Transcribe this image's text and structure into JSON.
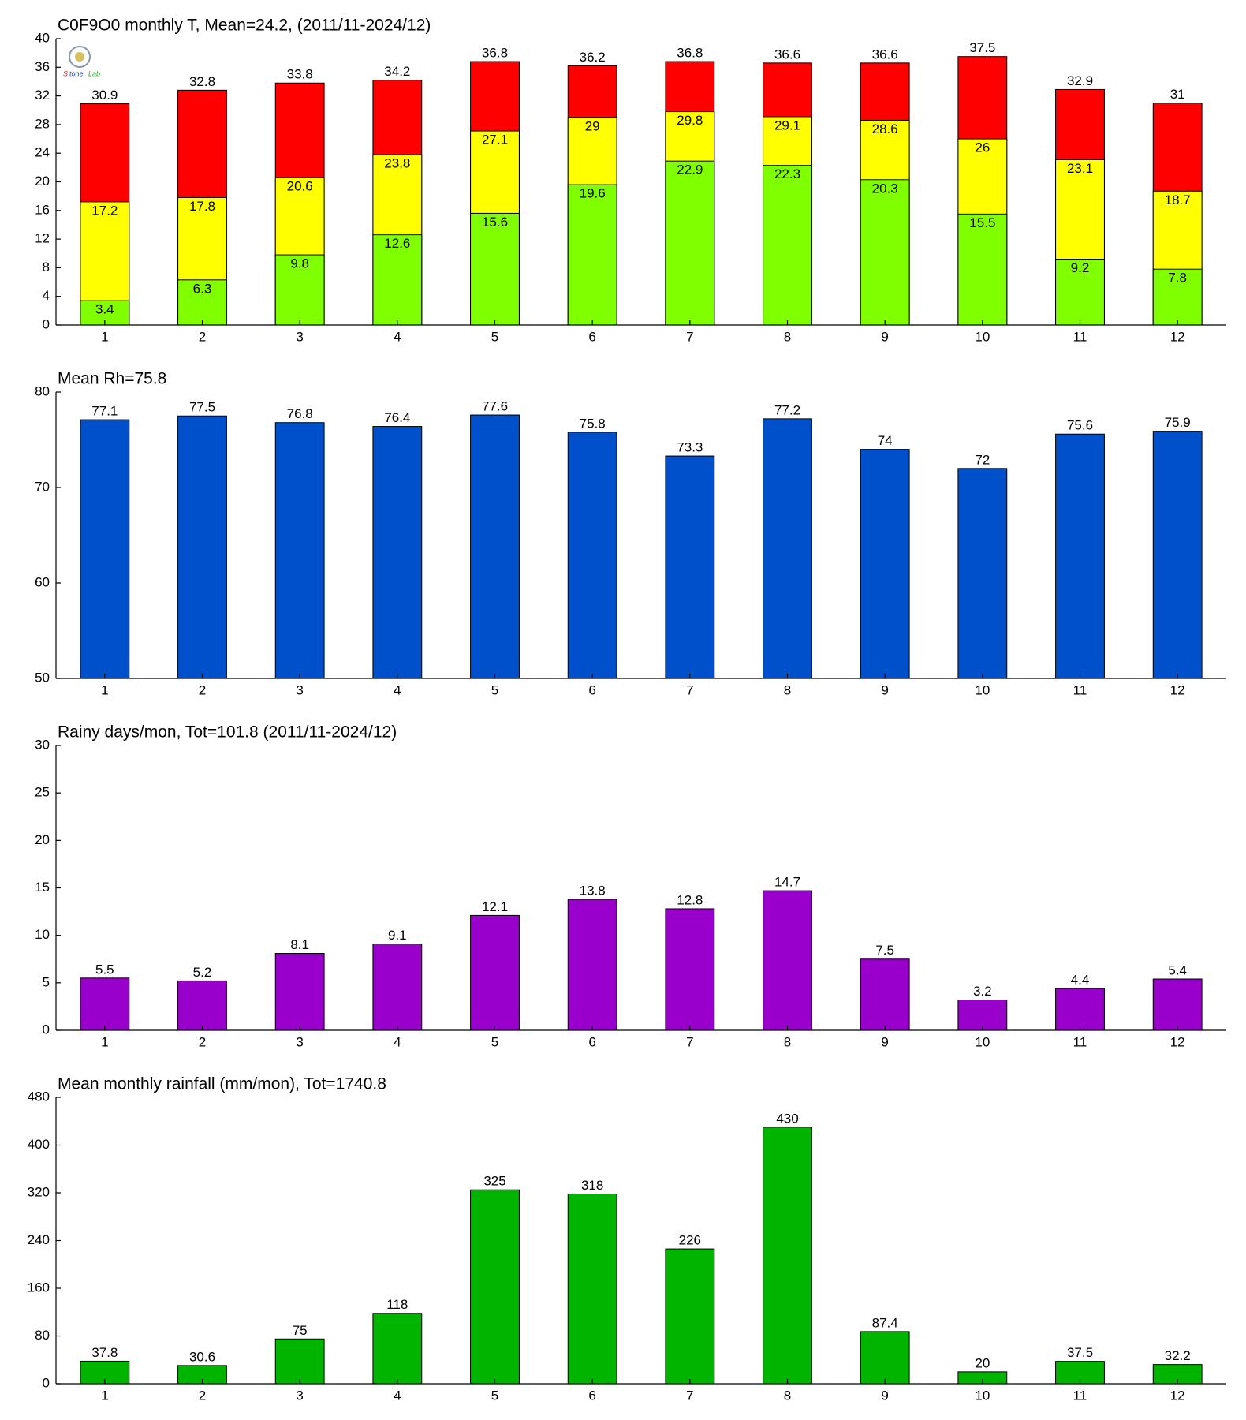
{
  "chart_data": [
    {
      "type": "bar",
      "title": "C0F9O0 monthly T, Mean=24.2, (2011/11-2024/12)",
      "categories": [
        1,
        2,
        3,
        4,
        5,
        6,
        7,
        8,
        9,
        10,
        11,
        12
      ],
      "series": [
        {
          "color": "#ff0000",
          "values": [
            30.9,
            32.8,
            33.8,
            34.2,
            36.8,
            36.2,
            36.8,
            36.6,
            36.6,
            37.5,
            32.9,
            31
          ]
        },
        {
          "color": "#ffff00",
          "values": [
            17.2,
            17.8,
            20.6,
            23.8,
            27.1,
            29,
            29.8,
            29.1,
            28.6,
            26,
            23.1,
            18.7
          ]
        },
        {
          "color": "#80ff00",
          "values": [
            3.4,
            6.3,
            9.8,
            12.6,
            15.6,
            19.6,
            22.9,
            22.3,
            20.3,
            15.5,
            9.2,
            7.8
          ]
        }
      ],
      "ylim": [
        0,
        40
      ],
      "yticks": [
        0,
        4,
        8,
        12,
        16,
        20,
        24,
        28,
        32,
        36,
        40
      ]
    },
    {
      "type": "bar",
      "title": "Mean Rh=75.8",
      "categories": [
        1,
        2,
        3,
        4,
        5,
        6,
        7,
        8,
        9,
        10,
        11,
        12
      ],
      "series": [
        {
          "color": "#0050cc",
          "values": [
            77.1,
            77.5,
            76.8,
            76.4,
            77.6,
            75.8,
            73.3,
            77.2,
            74,
            72,
            75.6,
            75.9
          ]
        }
      ],
      "ylim": [
        50,
        80
      ],
      "yticks": [
        50,
        60,
        70,
        80
      ]
    },
    {
      "type": "bar",
      "title": "Rainy days/mon, Tot=101.8 (2011/11-2024/12)",
      "categories": [
        1,
        2,
        3,
        4,
        5,
        6,
        7,
        8,
        9,
        10,
        11,
        12
      ],
      "series": [
        {
          "color": "#9900cc",
          "values": [
            5.5,
            5.2,
            8.1,
            9.1,
            12.1,
            13.8,
            12.8,
            14.7,
            7.5,
            3.2,
            4.4,
            5.4
          ]
        }
      ],
      "ylim": [
        0,
        30
      ],
      "yticks": [
        0,
        5,
        10,
        15,
        20,
        25,
        30
      ]
    },
    {
      "type": "bar",
      "title": "Mean monthly rainfall (mm/mon), Tot=1740.8",
      "categories": [
        1,
        2,
        3,
        4,
        5,
        6,
        7,
        8,
        9,
        10,
        11,
        12
      ],
      "series": [
        {
          "color": "#00b400",
          "values": [
            37.8,
            30.6,
            75,
            118,
            325,
            318,
            226,
            430,
            87.4,
            20,
            37.5,
            32.2
          ]
        }
      ],
      "ylim": [
        0,
        480
      ],
      "yticks": [
        0,
        80,
        160,
        240,
        320,
        400,
        480
      ]
    }
  ]
}
